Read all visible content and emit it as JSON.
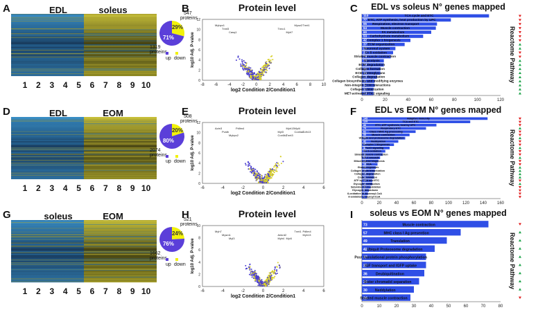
{
  "panel_letters": [
    "A",
    "B",
    "C",
    "D",
    "E",
    "F",
    "G",
    "H",
    "I"
  ],
  "heatmaps": [
    {
      "left_label": "EDL",
      "right_label": "soleus",
      "columns": [
        "1",
        "2",
        "3",
        "4",
        "5",
        "6",
        "7",
        "8",
        "9",
        "10"
      ],
      "split_after": 5,
      "left_dominant": "blue"
    },
    {
      "left_label": "EDL",
      "right_label": "EOM",
      "columns": [
        "1",
        "2",
        "3",
        "4",
        "5",
        "6",
        "7",
        "8",
        "9",
        "10"
      ],
      "split_after": 5,
      "left_dominant": "blue"
    },
    {
      "left_label": "soleus",
      "right_label": "EOM",
      "columns": [
        "1",
        "2",
        "3",
        "4",
        "5",
        "6",
        "7",
        "8",
        "9",
        "10"
      ],
      "split_after": 5,
      "left_dominant": "blue"
    }
  ],
  "pies": [
    {
      "up_count": "1319",
      "up_pct": "71%",
      "down_count": "547",
      "down_pct": "29%",
      "word": "proteins",
      "up_label": "up",
      "down_label": "down",
      "colors": {
        "up": "#5b3fd9",
        "down": "#f2f20a"
      }
    },
    {
      "up_count": "2074",
      "up_pct": "80%",
      "down_count": "508",
      "down_pct": "20%",
      "word": "proteins",
      "up_label": "up",
      "down_label": "down",
      "colors": {
        "up": "#5b3fd9",
        "down": "#f2f20a"
      }
    },
    {
      "up_count": "1662",
      "up_pct": "76%",
      "down_count": "521",
      "down_pct": "24%",
      "word": "proteins",
      "up_label": "up",
      "down_label": "down",
      "colors": {
        "up": "#5b3fd9",
        "down": "#f2f20a"
      }
    }
  ],
  "volcanoes": [
    {
      "title": "Protein level",
      "xlabel": "log2 Condition 2/Condition1",
      "ylabel": "log10 Adj. P-value",
      "xticks": [
        "-8",
        "-6",
        "-4",
        "-2",
        "0",
        "2",
        "4",
        "6",
        "8",
        "10"
      ],
      "yticks": [
        "0",
        "2",
        "4",
        "6",
        "8",
        "10",
        "12"
      ],
      "genes": [
        "Myhpc1",
        "Tnnt3",
        "Casq1",
        "Tnnt1",
        "Tnnc1",
        "Myh7",
        "Myoz2"
      ]
    },
    {
      "title": "Protein level",
      "xlabel": "log2 Condition 2/Condition1",
      "ylabel": "log10 Adj. P-value",
      "xticks": [
        "-6",
        "-4",
        "-2",
        "0",
        "2",
        "4",
        "6"
      ],
      "yticks": [
        "0",
        "2",
        "4",
        "6",
        "8",
        "10",
        "12"
      ],
      "genes": [
        "Actn3",
        "Pvalb",
        "Mybpc2",
        "Pdlim4",
        "Myl3",
        "Tnnt3",
        "Myl4",
        "Cdh13",
        "Cox6b2",
        "Myh13",
        "Cox6a2"
      ]
    },
    {
      "title": "Protein level",
      "xlabel": "log2 Condition 2/Condition1",
      "ylabel": "log10 Adj. P-value",
      "xticks": [
        "-6",
        "-4",
        "-2",
        "0",
        "2",
        "4",
        "6"
      ],
      "yticks": [
        "0",
        "2",
        "4",
        "6",
        "8",
        "10"
      ],
      "genes": [
        "Myh7",
        "Mysm1",
        "Myl3",
        "Pdlim4",
        "Ankrd2",
        "Myl4",
        "Tnnt1",
        "Myh13",
        "Myh4"
      ]
    }
  ],
  "chart_data": [
    {
      "type": "bar",
      "title": "EDL vs soleus N° genes mapped",
      "side_label": "Reactome Pathway",
      "xlim": [
        0,
        120
      ],
      "xticks": [
        "0",
        "20",
        "40",
        "60",
        "80",
        "100",
        "120"
      ],
      "categories": [
        "TCA cycle and ETC",
        "ETC, ATP synthesis, heat production by UPC",
        "Respiration, electron transport",
        "Muscle contraction",
        "FA metabolism",
        "Carbohydrate metabolism",
        "Complex 1 biogenesis",
        "ECM organization",
        "Neuronal system",
        "FA ß oxidation",
        "Striated muscle contraction",
        "Glycolysis",
        "ECM degradation",
        "Collagen formation",
        "ECM proteoglycans",
        "Collagen degradation",
        "Collagen biosynthesis and modifying enzymes",
        "Non-integrin ECM interactions",
        "Collagen trimerization",
        "MET-activated PTK2 signaling"
      ],
      "values": [
        110,
        77,
        65,
        64,
        60,
        53,
        42,
        37,
        29,
        27,
        25,
        19,
        19,
        16,
        16,
        13,
        11,
        11,
        10,
        10
      ],
      "arrows": [
        "down",
        "down",
        "down",
        "down",
        "down",
        "down",
        "down",
        "up",
        "up",
        "down",
        "down",
        "up",
        "up",
        "up",
        "up",
        "up",
        "up",
        "up",
        "up",
        "up"
      ]
    },
    {
      "type": "bar",
      "title": "EDL vs EOM N° genes mapped",
      "side_label": "Reactome Pathway",
      "xlim": [
        0,
        160
      ],
      "xticks": [
        "0",
        "20",
        "40",
        "60",
        "80",
        "100",
        "120",
        "140",
        "160"
      ],
      "categories": [
        "Adaptive immunity",
        "TCA and ETC",
        "ETC, ATP synthesis, heat by UPC",
        "Respiratory ETC",
        "Class I MHC Ag processing",
        "Muscle contraction",
        "Ubiquin and proteasome degradation",
        "Neddylation",
        "Complex 1 biogenesis",
        "FoxO signaling",
        "FA ß-oxidation",
        "Striated muscle contraction",
        "TLR-4 cascade",
        "Mitochondrial biogenesis",
        "TCA",
        "Gluconeogenesis",
        "Collagen chain trimerization",
        "Collagen degradation",
        "Crebe formation",
        "ATP by TCA and ETC",
        "Glycogen metabolism",
        "Saturated FA ß-oxidation",
        "Glycogen breakdown",
        "ß-oxidation of decanoyl-CoA",
        "ß-oxidation of lauroyl-CoA"
      ],
      "values": [
        145,
        125,
        86,
        74,
        62,
        55,
        50,
        42,
        37,
        32,
        27,
        24,
        21,
        19,
        18,
        16,
        15,
        14,
        14,
        12,
        12,
        10,
        8,
        7,
        6
      ],
      "arrows": [
        "down",
        "down",
        "down",
        "up",
        "down",
        "down",
        "up",
        "down",
        "down",
        "up",
        "down",
        "down",
        "up",
        "down",
        "down",
        "up",
        "up",
        "up",
        "up",
        "down",
        "up",
        "down",
        "down",
        "down",
        "down"
      ]
    },
    {
      "type": "bar",
      "title": "soleus vs EOM N° genes mapped",
      "side_label": "Reactome Pathway",
      "xlim": [
        0,
        80
      ],
      "xticks": [
        "0",
        "10",
        "20",
        "30",
        "40",
        "50",
        "60",
        "70",
        "80"
      ],
      "categories": [
        "Muscle contraction",
        "MHC class I Ag presention",
        "Translation",
        "Ubiquit Proteosome degradation",
        "Post translational protein phosphorylation",
        "IGF transport and IGFP uptake",
        "Deubiquitination",
        "Sister chromatid separation",
        "Neddylation",
        "Striated muscle contraction"
      ],
      "values": [
        73,
        57,
        49,
        42,
        37,
        37,
        36,
        33,
        30,
        28
      ],
      "arrows": [
        "down",
        "up",
        "up",
        "up",
        "up",
        "up",
        "up",
        "up",
        "up",
        "down"
      ]
    }
  ]
}
